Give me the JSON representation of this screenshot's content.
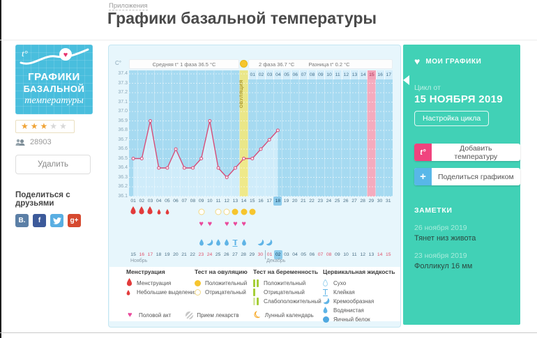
{
  "page": {
    "breadcrumb": "Приложения",
    "title": "Графики базальной температуры"
  },
  "sidebar": {
    "tile": {
      "t_symbol": "t°",
      "line1": "ГРАФИКИ",
      "line2": "БАЗАЛЬНОЙ",
      "line3": "температуры"
    },
    "rating_filled": 3,
    "rating_total": 5,
    "users_count": "28903",
    "delete_button": "Удалить",
    "share_heading": "Поделиться с друзьями",
    "social": [
      {
        "name": "vk",
        "label": "В."
      },
      {
        "name": "facebook",
        "label": "f"
      },
      {
        "name": "twitter",
        "label": ""
      },
      {
        "name": "google-plus",
        "label": "g+"
      }
    ]
  },
  "colors": {
    "accent_teal": "#41d1b6",
    "chart_bg": "#a6daf1",
    "area_fill": "#cfecfa",
    "temp_line": "#d64d78",
    "ovulation_column": "#f4e87a",
    "period_column": "#f5abbe",
    "menstruation_red": "#e23b3b",
    "ovulation_test_yellow": "#f6c52e",
    "pregnancy_green": "#a6ce39",
    "cervical_blue": "#5fb4e6",
    "intercourse_pink": "#ea4a9c",
    "moon_orange": "#f6a51f"
  },
  "chart_data": {
    "type": "line",
    "unit_label": "C°",
    "header": {
      "phase1": "Средняя t° 1 фаза   36.5 °C",
      "phase2": "2 фаза  36.7 °C",
      "diff": "Разница t°  0.2 °C"
    },
    "y_ticks": [
      "37.4",
      "37.3",
      "37.2",
      "37.1",
      "37.0",
      "36.9",
      "36.8",
      "36.7",
      "36.6",
      "36.5",
      "36.4",
      "36.3",
      "36.2",
      "36.1"
    ],
    "ylim": [
      36.1,
      37.4
    ],
    "days_total": 31,
    "values": [
      36.5,
      36.5,
      36.9,
      36.4,
      36.4,
      36.6,
      36.4,
      36.4,
      36.5,
      36.9,
      36.4,
      36.3,
      36.4,
      36.5,
      36.5,
      36.6,
      36.7,
      36.8
    ],
    "ovulation_day": 14,
    "ovulation_label": "ОВУЛЯЦИЯ",
    "expected_period_day": 29,
    "current_day": 18,
    "phase2_day_labels": [
      "01",
      "02",
      "03",
      "04",
      "05",
      "06",
      "07",
      "08",
      "09",
      "10",
      "11",
      "12",
      "13",
      "14",
      "15",
      "16",
      "17"
    ],
    "bottom_axis_labels": [
      "01",
      "02",
      "03",
      "04",
      "05",
      "06",
      "07",
      "08",
      "09",
      "10",
      "11",
      "12",
      "13",
      "14",
      "15",
      "16",
      "17",
      "18",
      "19",
      "20",
      "21",
      "22",
      "23",
      "24",
      "25",
      "26",
      "27",
      "28",
      "29",
      "30",
      "31"
    ],
    "events": {
      "menstruation": [
        {
          "day": 1,
          "size": "large"
        },
        {
          "day": 2,
          "size": "large"
        },
        {
          "day": 3,
          "size": "large"
        },
        {
          "day": 4,
          "size": "small"
        },
        {
          "day": 5,
          "size": "small"
        }
      ],
      "ovulation_tests": [
        {
          "day": 9,
          "result": "negative"
        },
        {
          "day": 11,
          "result": "negative"
        },
        {
          "day": 12,
          "result": "negative"
        },
        {
          "day": 13,
          "result": "positive"
        },
        {
          "day": 14,
          "result": "positive"
        },
        {
          "day": 15,
          "result": "positive"
        }
      ],
      "intercourse_days": [
        9,
        10,
        12,
        13,
        14
      ],
      "cervical_fluid": [
        {
          "day": 9,
          "type": "watery"
        },
        {
          "day": 10,
          "type": "creamy"
        },
        {
          "day": 11,
          "type": "watery"
        },
        {
          "day": 12,
          "type": "watery"
        },
        {
          "day": 13,
          "type": "sticky"
        },
        {
          "day": 14,
          "type": "watery"
        },
        {
          "day": 16,
          "type": "creamy"
        },
        {
          "day": 17,
          "type": "creamy"
        }
      ]
    },
    "calendar": {
      "month_labels": [
        {
          "label": "Ноябрь",
          "day": 1
        },
        {
          "label": "Декабрь",
          "day": 17
        }
      ],
      "divider_before_day": 17,
      "cells": [
        {
          "label": "15"
        },
        {
          "label": "16",
          "weekend": true
        },
        {
          "label": "17",
          "weekend": true
        },
        {
          "label": "18"
        },
        {
          "label": "19"
        },
        {
          "label": "20"
        },
        {
          "label": "21"
        },
        {
          "label": "22"
        },
        {
          "label": "23",
          "weekend": true
        },
        {
          "label": "24",
          "weekend": true
        },
        {
          "label": "25"
        },
        {
          "label": "26"
        },
        {
          "label": "27"
        },
        {
          "label": "28"
        },
        {
          "label": "29"
        },
        {
          "label": "30",
          "weekend": true
        },
        {
          "label": "01",
          "weekend": true
        },
        {
          "label": "02",
          "selected": true
        },
        {
          "label": "03"
        },
        {
          "label": "04"
        },
        {
          "label": "05"
        },
        {
          "label": "06"
        },
        {
          "label": "07",
          "weekend": true
        },
        {
          "label": "08",
          "weekend": true
        },
        {
          "label": "09"
        },
        {
          "label": "10"
        },
        {
          "label": "11"
        },
        {
          "label": "12"
        },
        {
          "label": "13"
        },
        {
          "label": "14",
          "weekend": true
        },
        {
          "label": "15",
          "weekend": true
        }
      ]
    }
  },
  "legend": {
    "groups": [
      {
        "title": "Менструация",
        "items": [
          {
            "icon": "drop-large",
            "label": "Менструация"
          },
          {
            "icon": "drop-small",
            "label": "Небольшие выделения"
          }
        ]
      },
      {
        "title": "Тест на овуляцию",
        "items": [
          {
            "icon": "circle-filled",
            "label": "Положительный"
          },
          {
            "icon": "circle-outline",
            "label": "Отрицательный"
          }
        ]
      },
      {
        "title": "Тест на беременность",
        "items": [
          {
            "icon": "bars-2",
            "label": "Положительный"
          },
          {
            "icon": "bars-1",
            "label": "Отрицательный"
          },
          {
            "icon": "bars-2-weak",
            "label": "Слабоположительный"
          }
        ]
      },
      {
        "title": "Цервикальная жидкость",
        "items": [
          {
            "icon": "dry",
            "label": "Сухо"
          },
          {
            "icon": "sticky",
            "label": "Клейкая"
          },
          {
            "icon": "creamy",
            "label": "Кремообразная"
          },
          {
            "icon": "watery",
            "label": "Водянистая"
          },
          {
            "icon": "eggwhite",
            "label": "Яичный белок"
          }
        ]
      }
    ],
    "footer_items": [
      {
        "icon": "heart",
        "label": "Половой акт"
      },
      {
        "icon": "pill",
        "label": "Прием лекарств"
      },
      {
        "icon": "moon",
        "label": "Лунный календарь"
      }
    ]
  },
  "panel": {
    "header": "МОИ ГРАФИКИ",
    "cycle_from_label": "Цикл от",
    "cycle_date": "15 НОЯБРЯ 2019",
    "settings_button": "Настройка цикла",
    "add_temp_icon": "t°",
    "add_temp_button": "Добавить температуру",
    "share_icon": "+",
    "share_button": "Поделиться графиком",
    "notes_header": "ЗАМЕТКИ",
    "notes": [
      {
        "date": "26 ноября 2019",
        "text": "Тянет низ живота"
      },
      {
        "date": "23 ноября 2019",
        "text": "Фолликул 16 мм"
      }
    ]
  }
}
